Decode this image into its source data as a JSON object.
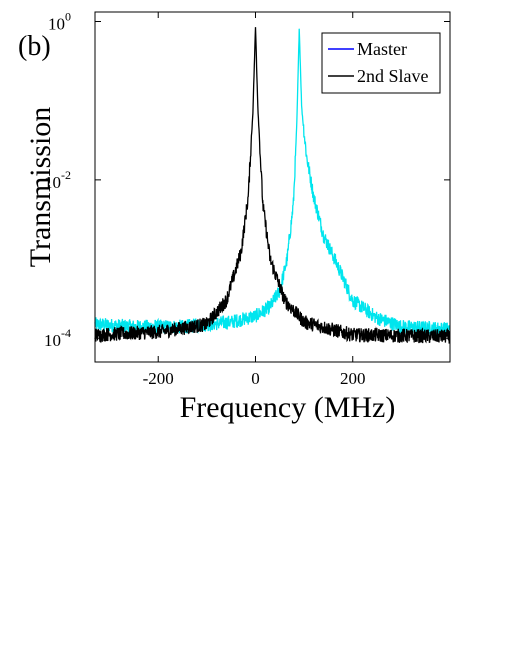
{
  "panel_label": "(b)",
  "chart_data": {
    "type": "line",
    "title": "",
    "xlabel": "Frequency (MHz)",
    "ylabel": "Transmission",
    "xlim": [
      -330,
      400
    ],
    "ylim_log10": [
      -4.3,
      0.12
    ],
    "yscale": "log",
    "grid": false,
    "legend_position": "top-right",
    "x_ticks": [
      {
        "value": -200,
        "label": "-200"
      },
      {
        "value": 0,
        "label": "0"
      },
      {
        "value": 200,
        "label": "200"
      }
    ],
    "y_ticks": [
      {
        "value": 1,
        "base": "10",
        "exp": "0"
      },
      {
        "value": 0.01,
        "base": "10",
        "exp": "-2"
      },
      {
        "value": 0.0001,
        "base": "10",
        "exp": "-4"
      }
    ],
    "series": [
      {
        "name": "Master",
        "line_color": "#00e5ee",
        "legend_color": "#0000ff",
        "peak_x": 90,
        "peak_y": 0.85,
        "baseline_left": 0.00014,
        "baseline_right": 0.00013,
        "points": [
          [
            -330,
            0.00015
          ],
          [
            -250,
            0.00014
          ],
          [
            -150,
            0.00014
          ],
          [
            -50,
            0.00016
          ],
          [
            0,
            0.00019
          ],
          [
            30,
            0.00025
          ],
          [
            50,
            0.0004
          ],
          [
            65,
            0.001
          ],
          [
            78,
            0.005
          ],
          [
            85,
            0.05
          ],
          [
            90,
            0.85
          ],
          [
            95,
            0.08
          ],
          [
            105,
            0.02
          ],
          [
            120,
            0.006
          ],
          [
            140,
            0.002
          ],
          [
            170,
            0.0008
          ],
          [
            200,
            0.0003
          ],
          [
            250,
            0.00018
          ],
          [
            300,
            0.00014
          ],
          [
            400,
            0.00013
          ]
        ]
      },
      {
        "name": "2nd Slave",
        "line_color": "#000000",
        "legend_color": "#000000",
        "peak_x": 0,
        "peak_y": 0.85,
        "baseline_left": 0.00011,
        "baseline_right": 0.000105,
        "points": [
          [
            -330,
            0.00011
          ],
          [
            -200,
            0.00012
          ],
          [
            -100,
            0.00015
          ],
          [
            -60,
            0.0003
          ],
          [
            -30,
            0.0012
          ],
          [
            -15,
            0.006
          ],
          [
            -5,
            0.08
          ],
          [
            0,
            0.85
          ],
          [
            5,
            0.08
          ],
          [
            15,
            0.005
          ],
          [
            30,
            0.001
          ],
          [
            60,
            0.0003
          ],
          [
            100,
            0.00016
          ],
          [
            200,
            0.00011
          ],
          [
            400,
            0.000105
          ]
        ]
      }
    ]
  }
}
